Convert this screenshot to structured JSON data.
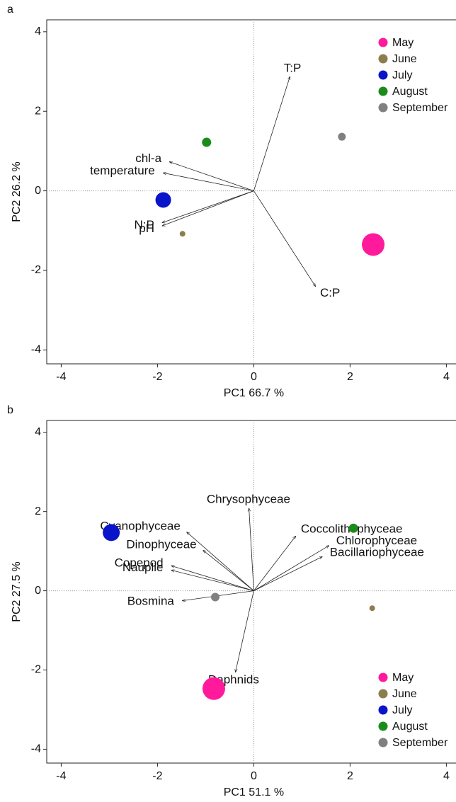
{
  "chart_data": [
    {
      "type": "scatter",
      "label": "a",
      "x_label": "PC1 66.7 %",
      "y_label": "PC2 26.2 %",
      "xlim": [
        -4.3,
        4.2
      ],
      "ylim": [
        -4.35,
        4.3
      ],
      "xticks": [
        -4,
        -2,
        0,
        2,
        4
      ],
      "yticks": [
        -4,
        -2,
        0,
        2,
        4
      ],
      "legend": "top right",
      "series": [
        {
          "name": "May",
          "color": "#ff1a9c",
          "x": [
            2.48
          ],
          "values": [
            -1.35
          ],
          "sizes": [
            16
          ]
        },
        {
          "name": "June",
          "color": "#8c7d4f",
          "x": [
            -1.48
          ],
          "values": [
            -1.08
          ],
          "sizes": [
            4
          ]
        },
        {
          "name": "July",
          "color": "#0a14c8",
          "x": [
            -1.88
          ],
          "values": [
            -0.23
          ],
          "sizes": [
            11
          ]
        },
        {
          "name": "August",
          "color": "#1a8c1a",
          "x": [
            -0.98
          ],
          "values": [
            1.22
          ],
          "sizes": [
            6.5
          ]
        },
        {
          "name": "September",
          "color": "#808080",
          "x": [
            1.83
          ],
          "values": [
            1.36
          ],
          "sizes": [
            5.5
          ]
        }
      ],
      "loadings": [
        {
          "label": "T:P",
          "x": 0.75,
          "y": 2.87
        },
        {
          "label": "chl-a",
          "x": -1.75,
          "y": 0.73
        },
        {
          "label": "temperature",
          "x": -1.88,
          "y": 0.45
        },
        {
          "label": "N:P",
          "x": -1.9,
          "y": -0.8
        },
        {
          "label": "pH",
          "x": -1.9,
          "y": -0.88
        },
        {
          "label": "C:P",
          "x": 1.28,
          "y": -2.4
        }
      ]
    },
    {
      "type": "scatter",
      "label": "b",
      "x_label": "PC1 51.1 %",
      "y_label": "PC2 27.5 %",
      "xlim": [
        -4.3,
        4.2
      ],
      "ylim": [
        -4.35,
        4.3
      ],
      "xticks": [
        -4,
        -2,
        0,
        2,
        4
      ],
      "yticks": [
        -4,
        -2,
        0,
        2,
        4
      ],
      "legend": "bottom right",
      "series": [
        {
          "name": "May",
          "color": "#ff1a9c",
          "x": [
            -0.83
          ],
          "values": [
            -2.47
          ],
          "sizes": [
            16
          ]
        },
        {
          "name": "June",
          "color": "#8c7d4f",
          "x": [
            2.46
          ],
          "values": [
            -0.44
          ],
          "sizes": [
            4
          ]
        },
        {
          "name": "July",
          "color": "#0a14c8",
          "x": [
            -2.96
          ],
          "values": [
            1.47
          ],
          "sizes": [
            12
          ]
        },
        {
          "name": "August",
          "color": "#1a8c1a",
          "x": [
            2.07
          ],
          "values": [
            1.58
          ],
          "sizes": [
            6.5
          ]
        },
        {
          "name": "September",
          "color": "#808080",
          "x": [
            -0.8
          ],
          "values": [
            -0.16
          ],
          "sizes": [
            6
          ]
        }
      ],
      "loadings": [
        {
          "label": "Chrysophyceae",
          "x": -0.1,
          "y": 2.08
        },
        {
          "label": "Coccolithophyceae",
          "x": 0.87,
          "y": 1.38
        },
        {
          "label": "Chlorophyceae",
          "x": 1.56,
          "y": 1.14
        },
        {
          "label": "Bacillariophyceae",
          "x": 1.42,
          "y": 0.86
        },
        {
          "label": "Cyanophyceae",
          "x": -1.39,
          "y": 1.48
        },
        {
          "label": "Dinophyceae",
          "x": -1.05,
          "y": 1.02
        },
        {
          "label": "Copepod",
          "x": -1.71,
          "y": 0.63
        },
        {
          "label": "Nauplie",
          "x": -1.71,
          "y": 0.52
        },
        {
          "label": "Bosmina",
          "x": -1.48,
          "y": -0.25
        },
        {
          "label": "Daphnids",
          "x": -0.38,
          "y": -2.05
        }
      ]
    }
  ]
}
